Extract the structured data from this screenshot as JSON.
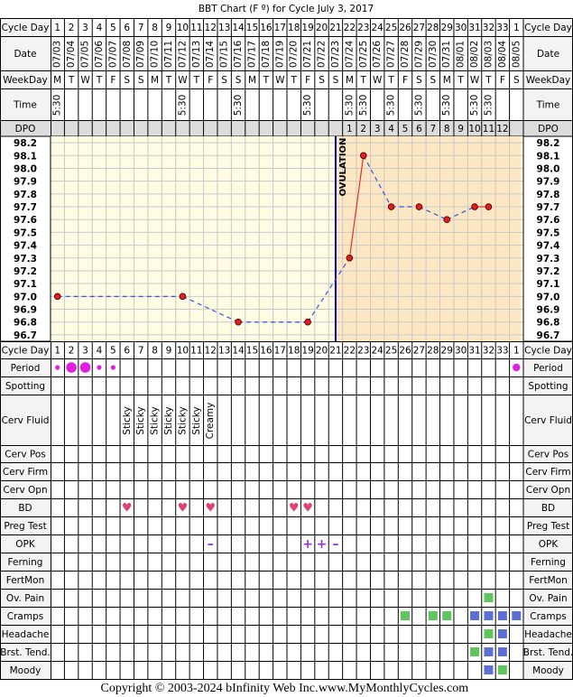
{
  "title": "BBT Chart (F º) for Cycle July 3, 2017",
  "row_labels": {
    "cycle_day": "Cycle Day",
    "date": "Date",
    "weekday": "WeekDay",
    "time": "Time",
    "dpo": "DPO",
    "period": "Period",
    "spotting": "Spotting",
    "cerv_fluid": "Cerv Fluid",
    "cerv_pos": "Cerv Pos",
    "cerv_firm": "Cerv Firm",
    "cerv_opn": "Cerv Opn",
    "bd": "BD",
    "preg_test": "Preg Test",
    "opk": "OPK",
    "ferning": "Ferning",
    "fertmon": "FertMon"
  },
  "cycle_days": [
    1,
    2,
    3,
    4,
    5,
    6,
    7,
    8,
    9,
    10,
    11,
    12,
    13,
    14,
    15,
    16,
    17,
    18,
    19,
    20,
    21,
    22,
    23,
    24,
    25,
    26,
    27,
    28,
    29,
    30,
    31,
    32,
    33,
    1
  ],
  "dates": [
    "07/03",
    "07/04",
    "07/05",
    "07/06",
    "07/07",
    "07/08",
    "07/09",
    "07/10",
    "07/11",
    "07/12",
    "07/13",
    "07/14",
    "07/15",
    "07/16",
    "07/17",
    "07/18",
    "07/19",
    "07/20",
    "07/21",
    "07/22",
    "07/23",
    "07/24",
    "07/25",
    "07/26",
    "07/27",
    "07/28",
    "07/29",
    "07/30",
    "07/31",
    "08/01",
    "08/02",
    "08/03",
    "08/04",
    "08/05"
  ],
  "weekdays": [
    "M",
    "T",
    "W",
    "T",
    "F",
    "S",
    "S",
    "M",
    "T",
    "W",
    "T",
    "F",
    "S",
    "S",
    "M",
    "T",
    "W",
    "T",
    "F",
    "S",
    "S",
    "M",
    "T",
    "W",
    "T",
    "F",
    "S",
    "S",
    "M",
    "T",
    "W",
    "T",
    "F",
    "S"
  ],
  "times": [
    "5:30",
    null,
    null,
    null,
    null,
    null,
    null,
    null,
    null,
    "5:30",
    null,
    null,
    null,
    "5:30",
    null,
    null,
    null,
    null,
    "5:30",
    null,
    null,
    "5:30",
    "5:30",
    null,
    "5:30",
    null,
    "5:30",
    null,
    "5:30",
    null,
    "5:30",
    "5:30",
    null,
    null
  ],
  "dpo": [
    null,
    null,
    null,
    null,
    null,
    null,
    null,
    null,
    null,
    null,
    null,
    null,
    null,
    null,
    null,
    null,
    null,
    null,
    null,
    null,
    null,
    1,
    2,
    3,
    4,
    5,
    6,
    7,
    8,
    9,
    10,
    11,
    12,
    null
  ],
  "temperature": {
    "ylim": [
      96.65,
      98.25
    ],
    "yticks": [
      98.2,
      98.1,
      {
        "value": 98,
        "label": "98.0"
      },
      97.9,
      97.8,
      97.7,
      97.6,
      97.5,
      97.4,
      97.3,
      97.2,
      97.1,
      {
        "value": 97,
        "label": "97.0"
      },
      96.9,
      96.8,
      96.7
    ],
    "values": [
      97,
      null,
      null,
      null,
      null,
      null,
      null,
      null,
      null,
      97,
      null,
      null,
      null,
      96.8,
      null,
      null,
      null,
      null,
      96.8,
      null,
      null,
      97.3,
      98.1,
      null,
      97.7,
      null,
      97.7,
      null,
      97.6,
      null,
      97.7,
      97.7,
      null,
      null
    ],
    "ovulation_index": 20,
    "ovulation_label": "OVULATION"
  },
  "period": [
    1,
    3,
    3,
    1,
    1,
    null,
    null,
    null,
    null,
    null,
    null,
    null,
    null,
    null,
    null,
    null,
    null,
    null,
    null,
    null,
    null,
    null,
    null,
    null,
    null,
    null,
    null,
    null,
    null,
    null,
    null,
    null,
    null,
    2
  ],
  "cerv_fluid": [
    null,
    null,
    null,
    null,
    null,
    "Sticky",
    "Sticky",
    "Sticky",
    "Sticky",
    "Sticky",
    "Sticky",
    "Creamy",
    null,
    null,
    null,
    null,
    null,
    null,
    null,
    null,
    null,
    null,
    null,
    null,
    null,
    null,
    null,
    null,
    null,
    null,
    null,
    null,
    null,
    null
  ],
  "bd": [
    null,
    null,
    null,
    null,
    null,
    "♥",
    null,
    null,
    null,
    "♥",
    null,
    "♥",
    null,
    null,
    null,
    null,
    null,
    "♥",
    "♥",
    null,
    null,
    null,
    null,
    null,
    null,
    null,
    null,
    null,
    null,
    null,
    null,
    null,
    null,
    null
  ],
  "opk": [
    null,
    null,
    null,
    null,
    null,
    null,
    null,
    null,
    null,
    null,
    null,
    "–",
    null,
    null,
    null,
    null,
    null,
    null,
    "+",
    "+",
    "–",
    null,
    null,
    null,
    null,
    null,
    null,
    null,
    null,
    null,
    null,
    null,
    null,
    null
  ],
  "symptoms": [
    {
      "label": "Ov. Pain",
      "values": [
        null,
        null,
        null,
        null,
        null,
        null,
        null,
        null,
        null,
        null,
        null,
        null,
        null,
        null,
        null,
        null,
        null,
        null,
        null,
        null,
        null,
        null,
        null,
        null,
        null,
        null,
        null,
        null,
        null,
        null,
        null,
        "#5cc85c",
        null,
        null
      ]
    },
    {
      "label": "Cramps",
      "values": [
        null,
        null,
        null,
        null,
        null,
        null,
        null,
        null,
        null,
        null,
        null,
        null,
        null,
        null,
        null,
        null,
        null,
        null,
        null,
        null,
        null,
        null,
        null,
        null,
        null,
        "#5cc85c",
        null,
        "#5cc85c",
        "#5cc85c",
        null,
        "#5b6fd8",
        "#5b6fd8",
        "#5b6fd8",
        "#5b6fd8"
      ]
    },
    {
      "label": "Headache",
      "values": [
        null,
        null,
        null,
        null,
        null,
        null,
        null,
        null,
        null,
        null,
        null,
        null,
        null,
        null,
        null,
        null,
        null,
        null,
        null,
        null,
        null,
        null,
        null,
        null,
        null,
        null,
        null,
        null,
        null,
        null,
        null,
        "#5cc85c",
        "#5b6fd8",
        null
      ]
    },
    {
      "label": "Brst. Tend.",
      "values": [
        null,
        null,
        null,
        null,
        null,
        null,
        null,
        null,
        null,
        null,
        null,
        null,
        null,
        null,
        null,
        null,
        null,
        null,
        null,
        null,
        null,
        null,
        null,
        null,
        null,
        null,
        null,
        null,
        null,
        null,
        "#5cc85c",
        "#5b6fd8",
        "#5b6fd8",
        null
      ]
    },
    {
      "label": "Moody",
      "values": [
        null,
        null,
        null,
        null,
        null,
        null,
        null,
        null,
        null,
        null,
        null,
        null,
        null,
        null,
        null,
        null,
        null,
        null,
        null,
        null,
        null,
        null,
        null,
        null,
        null,
        null,
        null,
        null,
        null,
        null,
        null,
        "#5b6fd8",
        "#5cc85c",
        null
      ]
    }
  ],
  "copyright": "Copyright © 2003-2024 bInfinity Web Inc.",
  "site": "www.MyMonthlyCycles.com"
}
